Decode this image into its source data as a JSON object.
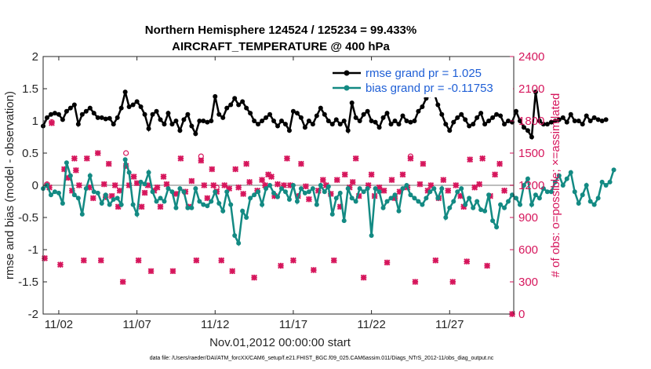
{
  "chart_data": {
    "type": "line",
    "title_line1": "Northern Hemisphere 124524 / 125234 = 99.433%",
    "title_line2": "AIRCRAFT_TEMPERATURE @ 400 hPa",
    "xlabel": "Nov.01,2012 00:00:00 start",
    "ylabel_left": "rmse and bias (model - observation)",
    "ylabel_right": "# of obs: o=possible; ×=assimilated",
    "footer": "data file: /Users/raeder/DAI/ATM_forcXX/CAM6_setup/f.e21.FHIST_BGC.f09_025.CAM6assim.011/Diags_NTrS_2012-11/obs_diag_output.nc",
    "x_tick_labels": [
      "11/02",
      "11/07",
      "11/12",
      "11/17",
      "11/22",
      "11/27"
    ],
    "x_tick_days": [
      2,
      7,
      12,
      17,
      22,
      27
    ],
    "xlim": [
      1,
      31.1
    ],
    "y_left_ticks": [
      "2",
      "1.5",
      "1",
      "0.5",
      "0",
      "-0.5",
      "-1",
      "-1.5",
      "-2"
    ],
    "y_left_range": [
      -2,
      2
    ],
    "y_right_ticks": [
      "2400",
      "2100",
      "1800",
      "1500",
      "1200",
      "900",
      "600",
      "300",
      "0"
    ],
    "y_right_range": [
      0,
      2400
    ],
    "colors": {
      "rmse": "#000000",
      "bias": "#138a83",
      "obs": "#d6165c",
      "zero_line": "#bdbdbd"
    },
    "legend": [
      {
        "name": "rmse grand pr = 1.025",
        "color": "#000000"
      },
      {
        "name": "bias grand pr = -0.11753",
        "color": "#138a83"
      }
    ],
    "series": [
      {
        "name": "rmse",
        "x_start": 1,
        "dx": 0.25,
        "values": [
          0.92,
          1.05,
          1.1,
          1.12,
          1.1,
          1.02,
          1.15,
          1.2,
          1.25,
          0.95,
          1.1,
          1.15,
          1.2,
          1.12,
          1.05,
          1.05,
          1.03,
          1.04,
          0.95,
          1.05,
          1.2,
          1.45,
          1.22,
          1.25,
          1.3,
          1.22,
          1.1,
          0.88,
          1.1,
          1.15,
          1.02,
          0.95,
          1.12,
          0.95,
          1.0,
          0.85,
          1.02,
          1.1,
          0.92,
          0.8,
          1.0,
          1.0,
          0.98,
          1.0,
          1.38,
          1.1,
          1.05,
          1.2,
          1.25,
          1.35,
          1.25,
          1.3,
          1.2,
          1.12,
          1.0,
          0.95,
          1.0,
          1.05,
          1.1,
          1.0,
          0.92,
          1.0,
          0.95,
          0.85,
          1.15,
          1.12,
          1.05,
          0.9,
          1.0,
          0.95,
          1.08,
          1.2,
          1.1,
          1.0,
          0.95,
          1.02,
          0.95,
          1.0,
          0.85,
          1.28,
          1.05,
          1.0,
          1.1,
          1.15,
          1.0,
          0.98,
          0.9,
          1.05,
          1.12,
          0.95,
          1.0,
          0.95,
          1.08,
          1.0,
          0.98,
          1.0,
          1.15,
          1.22,
          1.35,
          1.4,
          1.44,
          1.25,
          1.1,
          0.95,
          0.85,
          0.98,
          1.05,
          1.1,
          1.02,
          0.92,
          0.95,
          1.05,
          1.12,
          0.95,
          1.0,
          1.05,
          1.1,
          1.08,
          0.95,
          1.0,
          0.98,
          1.15,
          1.0,
          0.9,
          0.85,
          0.75,
          1.45,
          1.0,
          0.95,
          0.95,
          0.98,
          1.0,
          1.02,
          1.05,
          0.98,
          1.1,
          1.0,
          1.0,
          0.95,
          1.08,
          1.0,
          1.05,
          1.02,
          1.0,
          1.02
        ]
      },
      {
        "name": "bias",
        "x_start": 1,
        "dx": 0.25,
        "values": [
          -0.05,
          0.0,
          -0.15,
          -0.1,
          -0.12,
          -0.28,
          0.35,
          0.15,
          -0.15,
          -0.2,
          -0.45,
          -0.05,
          0.15,
          -0.1,
          -0.12,
          -0.28,
          -0.15,
          -0.3,
          -0.22,
          -0.2,
          -0.3,
          0.4,
          0.2,
          -0.3,
          -0.45,
          0.05,
          0.02,
          0.2,
          -0.1,
          -0.25,
          -0.2,
          -0.25,
          -0.05,
          -0.1,
          -0.35,
          -0.05,
          -0.1,
          -0.35,
          -0.35,
          -0.05,
          -0.25,
          -0.3,
          -0.32,
          -0.25,
          -0.1,
          -0.28,
          -0.4,
          -0.1,
          -0.3,
          -0.78,
          -0.9,
          -0.4,
          -0.5,
          -0.2,
          -0.15,
          -0.1,
          -0.3,
          -0.05,
          0.0,
          -0.12,
          -0.18,
          -0.05,
          -0.1,
          -0.22,
          0.0,
          -0.25,
          -0.05,
          -0.12,
          -0.1,
          -0.05,
          -0.3,
          0.0,
          -0.1,
          -0.02,
          -0.45,
          -0.2,
          -0.12,
          -0.55,
          -0.05,
          -0.2,
          -0.25,
          -0.05,
          -0.1,
          -0.05,
          -0.78,
          -0.05,
          -0.1,
          -0.35,
          -0.25,
          -0.2,
          -0.15,
          -0.4,
          -0.05,
          0.0,
          -0.15,
          -0.2,
          -0.25,
          -0.3,
          -0.2,
          -0.1,
          -0.05,
          -0.2,
          -0.05,
          -0.5,
          -0.35,
          -0.25,
          -0.1,
          -0.05,
          -0.3,
          -0.2,
          -0.35,
          -0.25,
          -0.38,
          -0.4,
          -0.15,
          -0.55,
          -0.65,
          -0.3,
          -0.35,
          -0.25,
          -0.15,
          -0.2,
          -0.3,
          0.0,
          0.1,
          -0.3,
          -0.15,
          -0.2,
          -0.05,
          -0.1,
          -0.1,
          0.05,
          0.15,
          0.0,
          0.1,
          0.2,
          -0.1,
          -0.28,
          -0.15,
          0.0,
          -0.25,
          -0.3,
          -0.2,
          0.05,
          0.0,
          0.05,
          0.24
        ]
      },
      {
        "name": "obs_assimilated",
        "points": [
          [
            1.1,
            520
          ],
          [
            1.25,
            1200
          ],
          [
            1.4,
            1180
          ],
          [
            1.55,
            1780
          ],
          [
            2.1,
            460
          ],
          [
            2.35,
            1350
          ],
          [
            2.6,
            1270
          ],
          [
            2.85,
            1150
          ],
          [
            3.0,
            1450
          ],
          [
            3.1,
            1340
          ],
          [
            3.3,
            1200
          ],
          [
            3.6,
            500
          ],
          [
            3.8,
            1450
          ],
          [
            3.95,
            1180
          ],
          [
            4.2,
            1080
          ],
          [
            4.5,
            1500
          ],
          [
            4.7,
            500
          ],
          [
            4.9,
            1210
          ],
          [
            5.0,
            1090
          ],
          [
            5.2,
            1400
          ],
          [
            5.4,
            1100
          ],
          [
            5.6,
            1200
          ],
          [
            5.8,
            1000
          ],
          [
            5.9,
            1150
          ],
          [
            6.1,
            300
          ],
          [
            6.3,
            1380
          ],
          [
            6.5,
            1200
          ],
          [
            6.8,
            1280
          ],
          [
            7.0,
            1220
          ],
          [
            7.1,
            500
          ],
          [
            7.3,
            1000
          ],
          [
            7.5,
            1130
          ],
          [
            7.7,
            1200
          ],
          [
            7.9,
            400
          ],
          [
            8.1,
            1150
          ],
          [
            8.3,
            1180
          ],
          [
            8.5,
            1000
          ],
          [
            8.7,
            1280
          ],
          [
            8.9,
            1210
          ],
          [
            9.3,
            400
          ],
          [
            9.5,
            1120
          ],
          [
            9.8,
            1450
          ],
          [
            10.1,
            1140
          ],
          [
            10.3,
            1000
          ],
          [
            10.5,
            1240
          ],
          [
            10.8,
            500
          ],
          [
            11.1,
            1430
          ],
          [
            11.3,
            1200
          ],
          [
            11.5,
            1080
          ],
          [
            11.8,
            1350
          ],
          [
            11.9,
            1200
          ],
          [
            12.1,
            1140
          ],
          [
            12.4,
            500
          ],
          [
            12.6,
            1200
          ],
          [
            12.9,
            1170
          ],
          [
            13.1,
            400
          ],
          [
            13.3,
            1350
          ],
          [
            13.5,
            1180
          ],
          [
            13.8,
            1120
          ],
          [
            14.0,
            1400
          ],
          [
            14.2,
            1230
          ],
          [
            14.5,
            340
          ],
          [
            14.7,
            1150
          ],
          [
            15.0,
            1250
          ],
          [
            15.2,
            1200
          ],
          [
            15.4,
            1300
          ],
          [
            15.6,
            1280
          ],
          [
            15.8,
            1100
          ],
          [
            16.0,
            1210
          ],
          [
            16.2,
            450
          ],
          [
            16.4,
            1200
          ],
          [
            16.6,
            1450
          ],
          [
            16.8,
            1200
          ],
          [
            17.0,
            500
          ],
          [
            17.3,
            1100
          ],
          [
            17.5,
            1400
          ],
          [
            17.8,
            1190
          ],
          [
            18.0,
            1070
          ],
          [
            18.3,
            410
          ],
          [
            18.6,
            1150
          ],
          [
            18.9,
            1250
          ],
          [
            19.1,
            1200
          ],
          [
            19.4,
            1120
          ],
          [
            19.6,
            500
          ],
          [
            19.8,
            1250
          ],
          [
            20.0,
            1000
          ],
          [
            20.3,
            1300
          ],
          [
            20.6,
            1180
          ],
          [
            20.8,
            1230
          ],
          [
            21.0,
            1450
          ],
          [
            21.2,
            1100
          ],
          [
            21.5,
            340
          ],
          [
            21.8,
            1200
          ],
          [
            22.0,
            1300
          ],
          [
            22.2,
            1100
          ],
          [
            22.5,
            1180
          ],
          [
            22.8,
            1150
          ],
          [
            23.0,
            480
          ],
          [
            23.3,
            1250
          ],
          [
            23.5,
            1080
          ],
          [
            23.8,
            1140
          ],
          [
            24.0,
            1300
          ],
          [
            24.3,
            1180
          ],
          [
            24.5,
            1450
          ],
          [
            24.8,
            300
          ],
          [
            25.1,
            1210
          ],
          [
            25.3,
            1400
          ],
          [
            25.6,
            1150
          ],
          [
            25.8,
            1200
          ],
          [
            26.1,
            500
          ],
          [
            26.3,
            1080
          ],
          [
            26.6,
            1250
          ],
          [
            26.9,
            1150
          ],
          [
            27.2,
            300
          ],
          [
            27.4,
            1200
          ],
          [
            27.7,
            1100
          ],
          [
            27.9,
            1000
          ],
          [
            28.1,
            490
          ],
          [
            28.3,
            1440
          ],
          [
            28.6,
            1180
          ],
          [
            28.9,
            1210
          ],
          [
            29.1,
            1450
          ],
          [
            29.4,
            450
          ],
          [
            29.6,
            1100
          ],
          [
            29.9,
            1300
          ],
          [
            30.2,
            1400
          ],
          [
            30.5,
            1150
          ],
          [
            31.0,
            0
          ]
        ]
      },
      {
        "name": "obs_possible",
        "points": [
          [
            6.3,
            1500
          ],
          [
            11.1,
            1470
          ],
          [
            24.5,
            1470
          ],
          [
            12.1,
            1180
          ],
          [
            1.25,
            1210
          ],
          [
            1.55,
            1790
          ]
        ]
      }
    ]
  }
}
